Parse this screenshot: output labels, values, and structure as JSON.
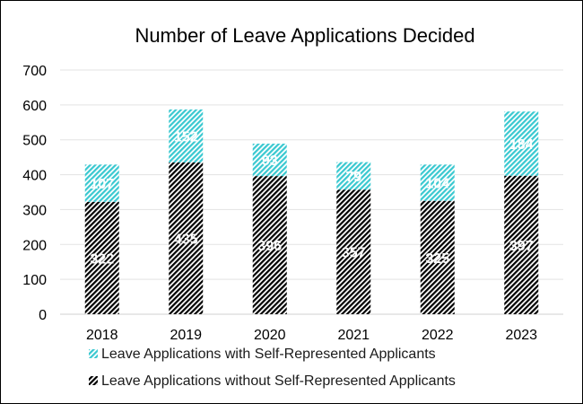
{
  "chart_data": {
    "type": "bar",
    "stacked": true,
    "title": "Number of Leave Applications Decided",
    "categories": [
      "2018",
      "2019",
      "2020",
      "2021",
      "2022",
      "2023"
    ],
    "series": [
      {
        "name": "Leave Applications without Self-Represented Applicants",
        "values": [
          322,
          435,
          396,
          357,
          325,
          397
        ],
        "color": "#000000",
        "pattern": "diagonal-hatch"
      },
      {
        "name": "Leave Applications with Self-Represented Applicants",
        "values": [
          107,
          152,
          93,
          79,
          104,
          184
        ],
        "color": "#39c8d0",
        "pattern": "diagonal-hatch"
      }
    ],
    "xlabel": "",
    "ylabel": "",
    "ylim": [
      0,
      700
    ],
    "yticks": [
      0,
      100,
      200,
      300,
      400,
      500,
      600,
      700
    ],
    "grid": true,
    "legend_position": "bottom",
    "legend_order": [
      1,
      0
    ]
  }
}
